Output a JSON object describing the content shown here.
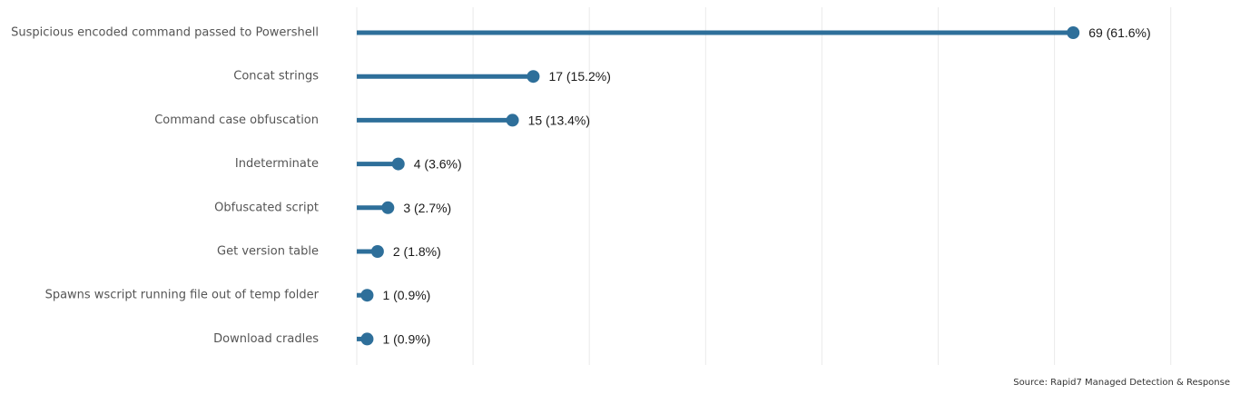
{
  "chart_data": {
    "type": "lollipop",
    "orientation": "horizontal",
    "categories": [
      "Suspicious encoded command passed to Powershell",
      "Concat strings",
      "Command case obfuscation",
      "Indeterminate",
      "Obfuscated script",
      "Get version table",
      "Spawns wscript running file out of temp folder",
      "Download cradles"
    ],
    "values": [
      69,
      17,
      15,
      4,
      3,
      2,
      1,
      1
    ],
    "value_labels": [
      "69 (61.6%)",
      "17 (15.2%)",
      "15 (13.4%)",
      "4 (3.6%)",
      "3 (2.7%)",
      "2 (1.8%)",
      "1 (0.9%)",
      "1 (0.9%)"
    ],
    "xlim": [
      0,
      78.6
    ],
    "grid": true,
    "grid_interval": 11.2,
    "color": "#2e6f9a",
    "gridline_color": "#eaeaea"
  },
  "source": "Source: Rapid7 Managed Detection & Response"
}
